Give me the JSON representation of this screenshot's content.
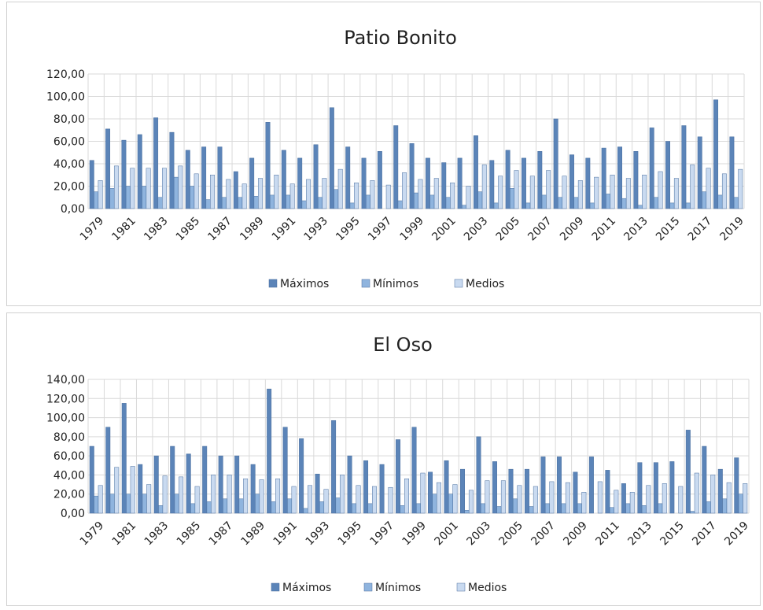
{
  "chart_data": [
    {
      "type": "bar",
      "title": "Patio Bonito",
      "categories": [
        "1979",
        null,
        "1981",
        null,
        "1983",
        null,
        "1985",
        null,
        "1987",
        null,
        "1989",
        null,
        "1991",
        null,
        "1993",
        null,
        "1995",
        null,
        "1997",
        null,
        "1999",
        null,
        "2001",
        null,
        "2003",
        null,
        "2005",
        null,
        "2007",
        null,
        "2009",
        null,
        "2011",
        null,
        "2013",
        null,
        "2015",
        null,
        "2017",
        null,
        "2019"
      ],
      "series": [
        {
          "name": "Máximos",
          "color": "#5b84b8",
          "values": [
            43,
            71,
            61,
            66,
            81,
            68,
            52,
            55,
            55,
            33,
            45,
            77,
            52,
            45,
            57,
            90,
            55,
            45,
            51,
            74,
            58,
            45,
            41,
            45,
            65,
            43,
            52,
            45,
            51,
            80,
            48,
            45,
            54,
            55,
            51,
            72,
            60,
            74,
            64,
            97,
            64
          ]
        },
        {
          "name": "Mínimos",
          "color": "#8fb4de",
          "values": [
            15,
            18,
            20,
            20,
            10,
            28,
            20,
            8,
            10,
            10,
            11,
            12,
            12,
            7,
            10,
            17,
            5,
            12,
            0,
            7,
            14,
            12,
            10,
            3,
            15,
            5,
            18,
            5,
            12,
            10,
            10,
            5,
            13,
            9,
            3,
            10,
            5,
            5,
            15,
            12,
            10
          ]
        },
        {
          "name": "Medios",
          "color": "#c9daf0",
          "values": [
            25,
            38,
            36,
            36,
            36,
            38,
            31,
            30,
            26,
            22,
            27,
            30,
            22,
            26,
            27,
            35,
            23,
            25,
            21,
            32,
            26,
            27,
            23,
            20,
            39,
            29,
            34,
            29,
            34,
            29,
            25,
            28,
            30,
            27,
            30,
            33,
            27,
            39,
            36,
            31,
            35
          ]
        }
      ],
      "ylim": [
        0,
        120
      ],
      "yticks": [
        {
          "value": 0,
          "label": "0,00"
        },
        {
          "value": 20,
          "label": "20,00"
        },
        {
          "value": 40,
          "label": "40,00"
        },
        {
          "value": 60,
          "label": "60,00"
        },
        {
          "value": 80,
          "label": "80,00"
        },
        {
          "value": 100,
          "label": "100,00"
        },
        {
          "value": 120,
          "label": "120,00"
        }
      ],
      "grid": true,
      "legend": "bottom"
    },
    {
      "type": "bar",
      "title": "El Oso",
      "categories": [
        "1979",
        null,
        "1981",
        null,
        "1983",
        null,
        "1985",
        null,
        "1987",
        null,
        "1989",
        null,
        "1991",
        null,
        "1993",
        null,
        "1995",
        null,
        "1997",
        null,
        "1999",
        null,
        "2001",
        null,
        "2003",
        null,
        "2005",
        null,
        "2007",
        null,
        "2009",
        null,
        "2011",
        null,
        "2013",
        null,
        "2015",
        null,
        "2017",
        null,
        "2019"
      ],
      "series": [
        {
          "name": "Máximos",
          "color": "#5b84b8",
          "values": [
            70,
            90,
            115,
            51,
            60,
            70,
            62,
            70,
            60,
            60,
            51,
            130,
            90,
            78,
            41,
            97,
            60,
            55,
            51,
            77,
            90,
            43,
            55,
            46,
            80,
            54,
            46,
            46,
            59,
            59,
            43,
            59,
            45,
            31,
            53,
            53,
            54,
            87,
            70,
            46,
            58
          ]
        },
        {
          "name": "Mínimos",
          "color": "#8fb4de",
          "values": [
            18,
            20,
            20,
            20,
            8,
            20,
            10,
            12,
            15,
            15,
            20,
            12,
            15,
            5,
            12,
            16,
            10,
            10,
            0,
            8,
            10,
            20,
            20,
            3,
            10,
            7,
            15,
            7,
            10,
            10,
            10,
            0,
            6,
            10,
            8,
            10,
            0,
            2,
            12,
            15,
            20
          ]
        },
        {
          "name": "Medios",
          "color": "#c9daf0",
          "values": [
            29,
            48,
            49,
            30,
            39,
            38,
            28,
            40,
            40,
            36,
            35,
            36,
            28,
            29,
            25,
            40,
            29,
            28,
            27,
            36,
            42,
            32,
            30,
            24,
            34,
            34,
            29,
            28,
            33,
            32,
            22,
            33,
            24,
            22,
            29,
            31,
            28,
            42,
            40,
            32,
            31
          ]
        }
      ],
      "ylim": [
        0,
        140
      ],
      "yticks": [
        {
          "value": 0,
          "label": "0,00"
        },
        {
          "value": 20,
          "label": "20,00"
        },
        {
          "value": 40,
          "label": "40,00"
        },
        {
          "value": 60,
          "label": "60,00"
        },
        {
          "value": 80,
          "label": "80,00"
        },
        {
          "value": 100,
          "label": "100,00"
        },
        {
          "value": 120,
          "label": "120,00"
        },
        {
          "value": 140,
          "label": "140,00"
        }
      ],
      "grid": true,
      "legend": "bottom"
    }
  ]
}
